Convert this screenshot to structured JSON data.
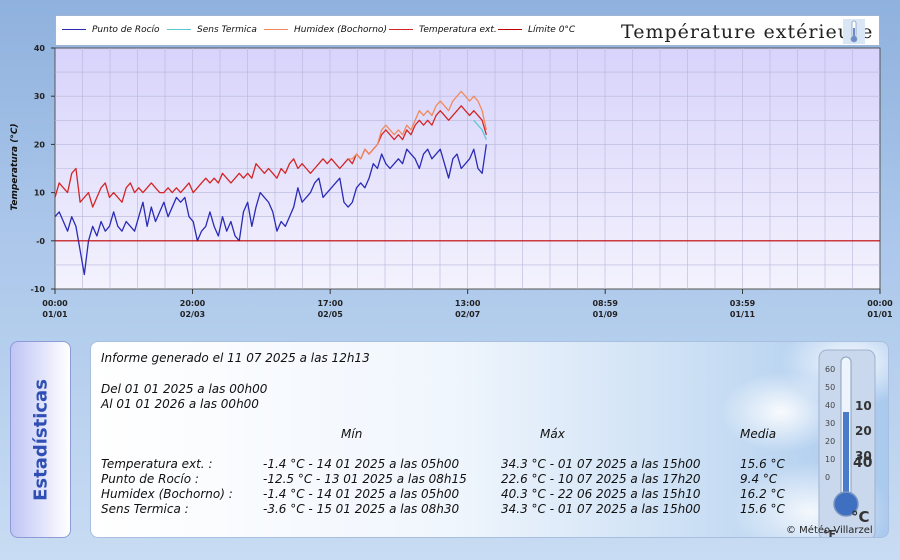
{
  "legend": {
    "items": [
      {
        "label": "Punto de Rocío",
        "color": "#2b2bb5"
      },
      {
        "label": "Sens Termica",
        "color": "#5cc8d6"
      },
      {
        "label": "Humidex (Bochorno)",
        "color": "#f08a5d"
      },
      {
        "label": "Temperatura ext.",
        "color": "#d32626"
      },
      {
        "label": "Límite 0°C",
        "color": "#c00000"
      }
    ],
    "title": "Température extérieure"
  },
  "chart_data": {
    "type": "line",
    "ylabel": "Temperatura (°C)",
    "ylim": [
      -10,
      40
    ],
    "y_ticks": [
      -10,
      0,
      10,
      20,
      30,
      40
    ],
    "y_tick_labels": [
      "-10",
      "-0",
      "10",
      "20",
      "30",
      "40"
    ],
    "x_range_days": [
      0,
      365
    ],
    "x_ticks": [
      {
        "day": 0,
        "time": "00:00",
        "date": "01/01"
      },
      {
        "day": 32.83,
        "time": "20:00",
        "date": "02/03"
      },
      {
        "day": 65.71,
        "time": "17:00",
        "date": "02/05"
      },
      {
        "day": 98.54,
        "time": "13:00",
        "date": "02/07"
      },
      {
        "day": 131.38,
        "time": "08:59",
        "date": "01/09"
      },
      {
        "day": 164.17,
        "time": "03:59",
        "date": "01/11"
      },
      {
        "day": 197.0,
        "time": "00:00",
        "date": "01/01"
      }
    ],
    "grid": true,
    "series": [
      {
        "name": "Temperatura ext.",
        "color": "#d32626",
        "x": [
          0,
          1,
          2,
          3,
          4,
          5,
          6,
          7,
          8,
          9,
          10,
          11,
          12,
          13,
          14,
          15,
          16,
          17,
          18,
          19,
          20,
          21,
          22,
          23,
          24,
          25,
          26,
          27,
          28,
          29,
          30,
          31,
          32,
          33,
          34,
          35,
          36,
          37,
          38,
          39,
          40,
          41,
          42,
          43,
          44,
          45,
          46,
          47,
          48,
          49,
          50,
          51,
          52,
          53,
          54,
          55,
          56,
          57,
          58,
          59,
          60,
          61,
          62,
          63,
          64,
          65,
          66,
          67,
          68,
          69,
          70,
          71,
          72,
          73,
          74,
          75,
          76,
          77,
          78,
          79,
          80,
          81,
          82,
          83,
          84,
          85,
          86,
          87,
          88,
          89,
          90,
          91,
          92,
          93,
          94,
          95,
          96,
          97,
          98,
          99,
          100,
          101,
          102,
          103
        ],
        "y": [
          9,
          12,
          11,
          10,
          14,
          15,
          8,
          9,
          10,
          7,
          9,
          11,
          12,
          9,
          10,
          9,
          8,
          11,
          12,
          10,
          11,
          10,
          11,
          12,
          11,
          10,
          10,
          11,
          10,
          11,
          10,
          11,
          12,
          10,
          11,
          12,
          13,
          12,
          13,
          12,
          14,
          13,
          12,
          13,
          14,
          13,
          14,
          13,
          16,
          15,
          14,
          15,
          14,
          13,
          15,
          14,
          16,
          17,
          15,
          16,
          15,
          14,
          15,
          16,
          17,
          16,
          17,
          16,
          15,
          16,
          17,
          16,
          18,
          17,
          19,
          18,
          19,
          20,
          22,
          23,
          22,
          21,
          22,
          21,
          23,
          22,
          24,
          25,
          24,
          25,
          24,
          26,
          27,
          26,
          25,
          26,
          27,
          28,
          27,
          26,
          27,
          26,
          25,
          22
        ]
      },
      {
        "name": "Humidex (Bochorno)",
        "color": "#f08a5d",
        "x": [
          70,
          71,
          72,
          73,
          74,
          75,
          76,
          77,
          78,
          79,
          80,
          81,
          82,
          83,
          84,
          85,
          86,
          87,
          88,
          89,
          90,
          91,
          92,
          93,
          94,
          95,
          96,
          97,
          98,
          99,
          100,
          101,
          102,
          103
        ],
        "y": [
          17,
          17,
          18,
          17,
          19,
          18,
          19,
          20,
          23,
          24,
          23,
          22,
          23,
          22,
          24,
          23,
          25,
          27,
          26,
          27,
          26,
          28,
          29,
          28,
          27,
          29,
          30,
          31,
          30,
          29,
          30,
          29,
          27,
          23
        ]
      },
      {
        "name": "Sens Termica",
        "color": "#5cc8d6",
        "x": [
          100,
          101,
          102,
          103
        ],
        "y": [
          25,
          24,
          23,
          21
        ]
      },
      {
        "name": "Punto de Rocío",
        "color": "#2b2bb5",
        "x": [
          0,
          1,
          2,
          3,
          4,
          5,
          6,
          7,
          8,
          9,
          10,
          11,
          12,
          13,
          14,
          15,
          16,
          17,
          18,
          19,
          20,
          21,
          22,
          23,
          24,
          25,
          26,
          27,
          28,
          29,
          30,
          31,
          32,
          33,
          34,
          35,
          36,
          37,
          38,
          39,
          40,
          41,
          42,
          43,
          44,
          45,
          46,
          47,
          48,
          49,
          50,
          51,
          52,
          53,
          54,
          55,
          56,
          57,
          58,
          59,
          60,
          61,
          62,
          63,
          64,
          65,
          66,
          67,
          68,
          69,
          70,
          71,
          72,
          73,
          74,
          75,
          76,
          77,
          78,
          79,
          80,
          81,
          82,
          83,
          84,
          85,
          86,
          87,
          88,
          89,
          90,
          91,
          92,
          93,
          94,
          95,
          96,
          97,
          98,
          99,
          100,
          101,
          102,
          103
        ],
        "y": [
          5,
          6,
          4,
          2,
          5,
          3,
          -2,
          -7,
          0,
          3,
          1,
          4,
          2,
          3,
          6,
          3,
          2,
          4,
          3,
          2,
          5,
          8,
          3,
          7,
          4,
          6,
          8,
          5,
          7,
          9,
          8,
          9,
          5,
          4,
          0,
          2,
          3,
          6,
          3,
          1,
          5,
          2,
          4,
          1,
          0,
          6,
          8,
          3,
          7,
          10,
          9,
          8,
          6,
          2,
          4,
          3,
          5,
          7,
          11,
          8,
          9,
          10,
          12,
          13,
          9,
          10,
          11,
          12,
          13,
          8,
          7,
          8,
          11,
          12,
          11,
          13,
          16,
          15,
          18,
          16,
          15,
          16,
          17,
          16,
          19,
          18,
          17,
          15,
          18,
          19,
          17,
          18,
          19,
          16,
          13,
          17,
          18,
          15,
          16,
          17,
          19,
          15,
          14,
          20
        ]
      },
      {
        "name": "Límite 0°C",
        "color": "#c00000",
        "x": [
          0,
          365
        ],
        "y": [
          0,
          0
        ]
      }
    ]
  },
  "stats": {
    "tab_label": "Estadísticas",
    "report": "Informe generado el 11 07 2025 a las 12h13",
    "from": "Del 01 01 2025 a las 00h00",
    "to": "Al 01 01 2026 a las 00h00",
    "headers": {
      "min": "Mín",
      "max": "Máx",
      "avg": "Media"
    },
    "rows": [
      {
        "label": "Temperatura ext. :",
        "min": "-1.4 °C - 14 01 2025 a las 05h00",
        "max": "34.3 °C - 01 07 2025 a las 15h00",
        "avg": "15.6 °C"
      },
      {
        "label": "Punto de Rocío :",
        "min": "-12.5 °C - 13 01 2025 a las 08h15",
        "max": "22.6 °C - 10 07 2025 a las 17h20",
        "avg": "9.4 °C"
      },
      {
        "label": "Humidex (Bochorno) :",
        "min": "-1.4 °C - 14 01 2025 a las 05h00",
        "max": "40.3 °C - 22 06 2025 a las 15h10",
        "avg": "16.2 °C"
      },
      {
        "label": "Sens Termica :",
        "min": "-3.6 °C - 15 01 2025 a las 08h30",
        "max": "34.3 °C - 01 07 2025 a las 15h00",
        "avg": "15.6 °C"
      }
    ],
    "thermometer_scale": [
      "60",
      "50",
      "40",
      "30",
      "20",
      "10",
      "0",
      "10",
      "20",
      "30",
      "40"
    ],
    "unit_c": "°C",
    "unit_f": "°F",
    "credit": "© Météo Villarzel"
  }
}
